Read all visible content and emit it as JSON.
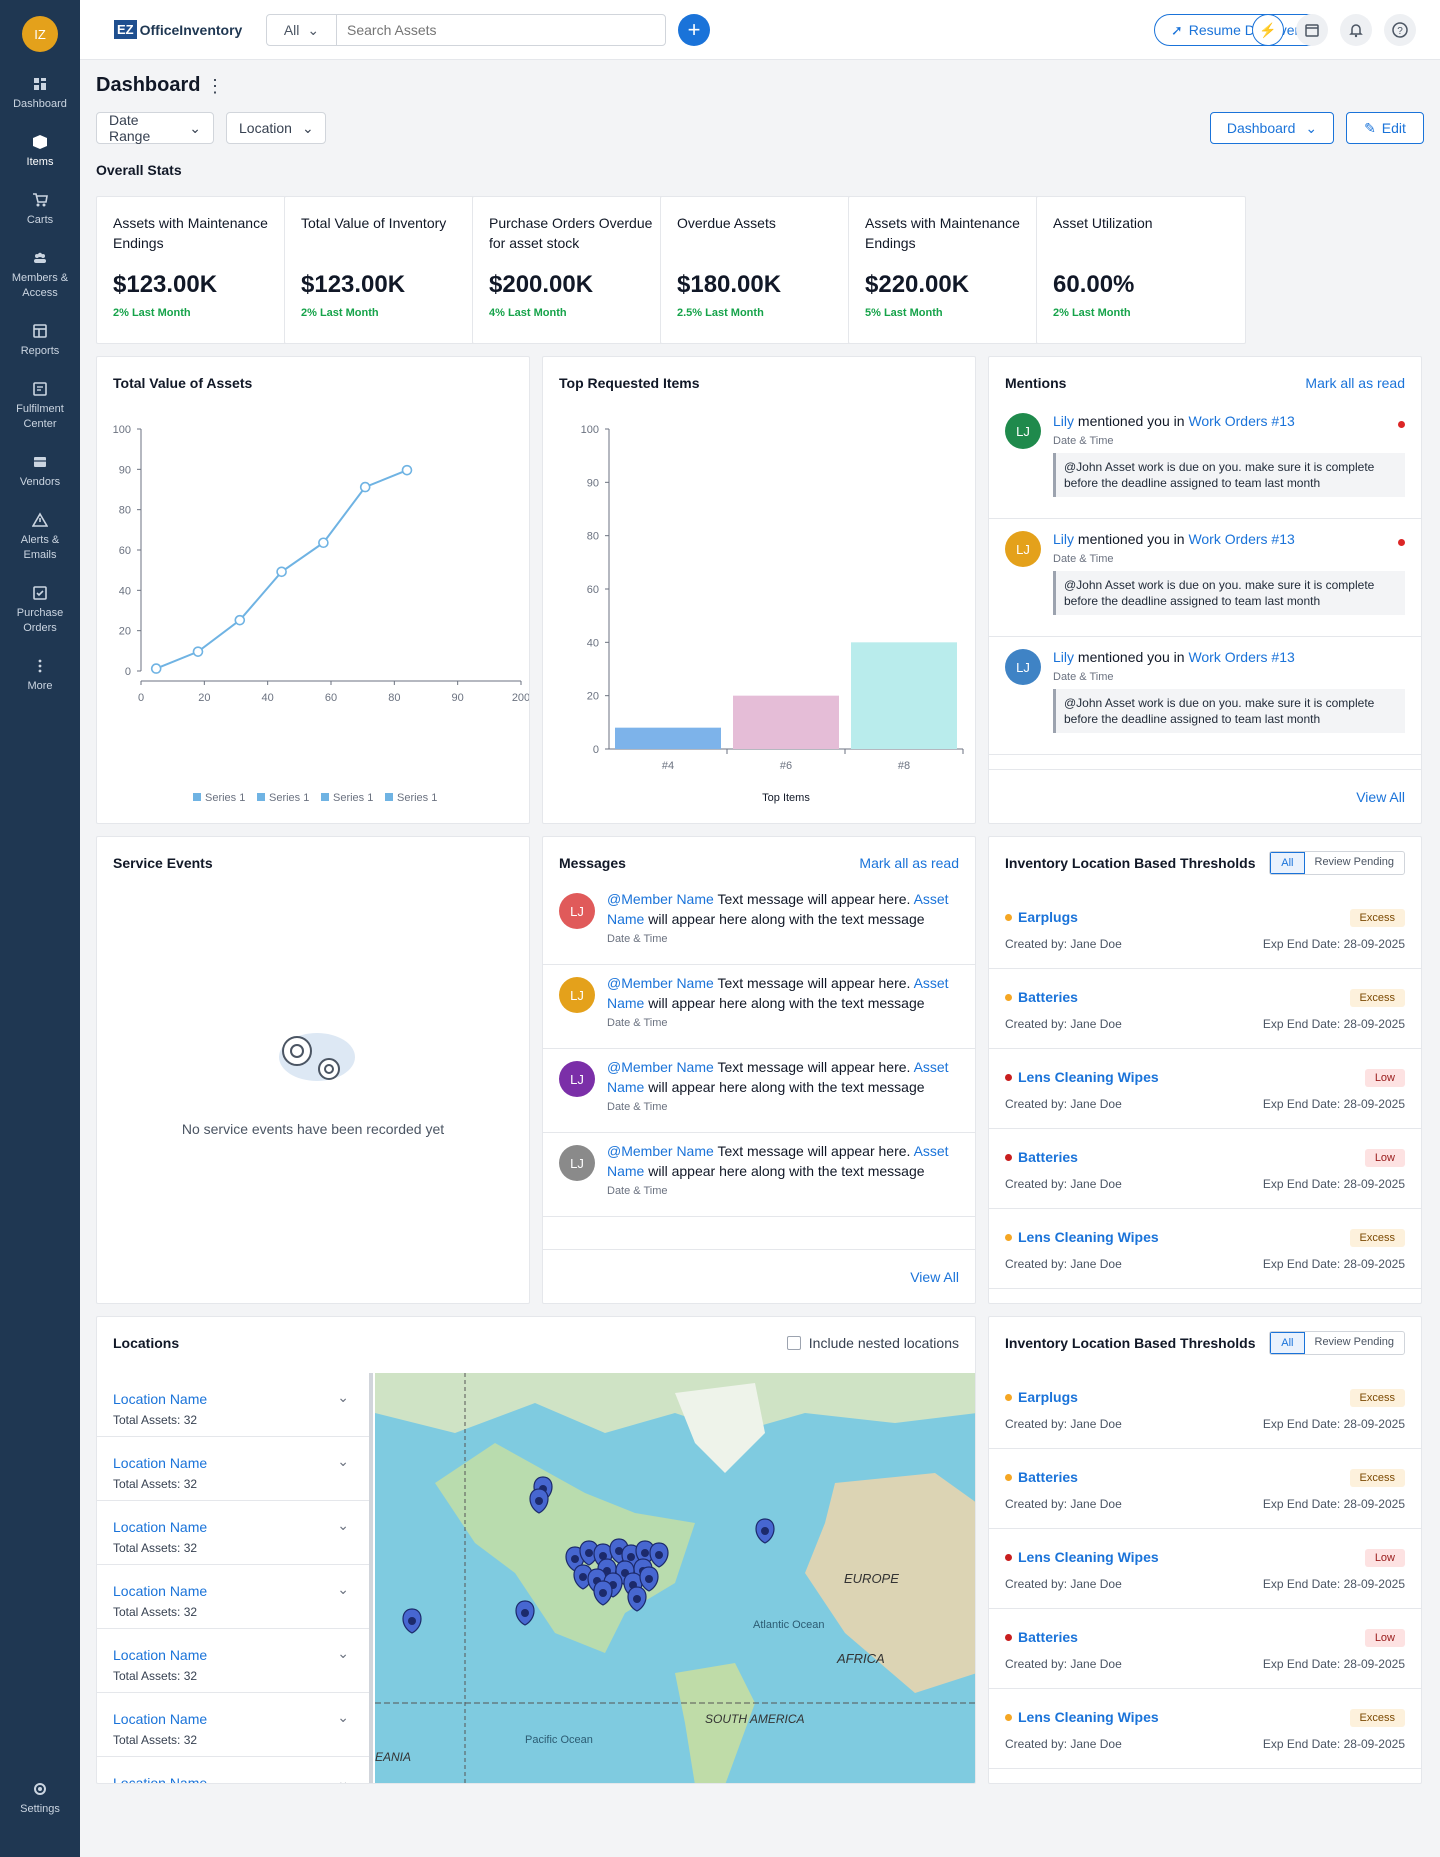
{
  "user_initials": "IZ",
  "sidebar": {
    "items": [
      {
        "label": "Dashboard",
        "icon": "dashboard-icon"
      },
      {
        "label": "Items",
        "icon": "box-icon"
      },
      {
        "label": "Carts",
        "icon": "cart-icon"
      },
      {
        "label": "Members & Access",
        "icon": "members-icon"
      },
      {
        "label": "Reports",
        "icon": "reports-icon"
      },
      {
        "label": "Fulfilment Center",
        "icon": "fulfilment-icon"
      },
      {
        "label": "Vendors",
        "icon": "vendors-icon"
      },
      {
        "label": "Alerts & Emails",
        "icon": "alert-icon"
      },
      {
        "label": "Purchase Orders",
        "icon": "purchase-icon"
      },
      {
        "label": "More",
        "icon": "more-icon"
      }
    ],
    "settings_label": "Settings"
  },
  "topbar": {
    "logo_ez": "EZ",
    "logo_name": "OfficeInventory",
    "search_category": "All",
    "search_placeholder": "Search Assets",
    "resume_label": "Resume Discovery"
  },
  "page": {
    "title": "Dashboard",
    "filter_date": "Date Range",
    "filter_location": "Location",
    "dashboard_btn": "Dashboard",
    "edit_btn": "Edit",
    "overall_stats": "Overall Stats"
  },
  "stats": [
    {
      "label": "Assets with Maintenance Endings",
      "value": "$123.00K",
      "change": "2% Last Month"
    },
    {
      "label": "Total Value of Inventory",
      "value": "$123.00K",
      "change": "2% Last Month"
    },
    {
      "label": "Purchase Orders Overdue for asset stock",
      "value": "$200.00K",
      "change": "4% Last Month"
    },
    {
      "label": "Overdue Assets",
      "value": "$180.00K",
      "change": "2.5% Last Month"
    },
    {
      "label": "Assets with Maintenance Endings",
      "value": "$220.00K",
      "change": "5% Last Month"
    },
    {
      "label": "Asset Utilization",
      "value": "60.00%",
      "change": "2% Last Month"
    }
  ],
  "chart_data": [
    {
      "type": "line",
      "title": "Total Value of Assets",
      "x": [
        8,
        30,
        52,
        74,
        96,
        118,
        140
      ],
      "series": [
        {
          "name": "Series 1",
          "values": [
            1,
            8,
            21,
            41,
            53,
            76,
            83
          ]
        }
      ],
      "xlim": [
        0,
        200
      ],
      "ylim": [
        0,
        100
      ],
      "xticks": [
        0,
        20,
        40,
        60,
        80,
        90,
        200
      ],
      "yticks": [
        0,
        20,
        40,
        60,
        80,
        90,
        100
      ],
      "legend": [
        "Series 1",
        "Series 1",
        "Series 1",
        "Series 1"
      ],
      "color": "#6fb3e3"
    },
    {
      "type": "bar",
      "title": "Top Requested Items",
      "categories": [
        "#4",
        "#6",
        "#8"
      ],
      "values": [
        8,
        20,
        40
      ],
      "xlabel": "Top Items",
      "ylim": [
        0,
        100
      ],
      "yticks": [
        0,
        20,
        40,
        60,
        80,
        90,
        100
      ],
      "colors": [
        "#7db3ea",
        "#e5bdd7",
        "#b9ecec"
      ]
    }
  ],
  "mentions": {
    "title": "Mentions",
    "mark_all": "Mark all as read",
    "view_all": "View All",
    "items": [
      {
        "initials": "LJ",
        "color": "#1f8a4c",
        "name": "Lily",
        "text": "mentioned you in",
        "link": "Work Orders #13",
        "time": "Date & Time",
        "quote": "@John Asset work is due on you. make sure it is complete before the deadline assigned to team last month",
        "unread": true
      },
      {
        "initials": "LJ",
        "color": "#e4a11b",
        "name": "Lily",
        "text": "mentioned you in",
        "link": "Work Orders #13",
        "time": "Date & Time",
        "quote": "@John Asset work is due on you. make sure it is complete before the deadline assigned to team last month",
        "unread": true
      },
      {
        "initials": "LJ",
        "color": "#3f83c5",
        "name": "Lily",
        "text": "mentioned you in",
        "link": "Work Orders #13",
        "time": "Date & Time",
        "quote": "@John Asset work is due on you. make sure it is complete before the deadline assigned to team last month",
        "unread": false
      }
    ]
  },
  "service_events": {
    "title": "Service Events",
    "empty": "No service events have been recorded yet"
  },
  "messages": {
    "title": "Messages",
    "mark_all": "Mark all as read",
    "view_all": "View All",
    "items": [
      {
        "initials": "LJ",
        "color": "#e05a5a",
        "member": "@Member Name",
        "t1": "Text message will appear here.",
        "asset": "Asset Name",
        "t2": "will appear here along with the text message",
        "time": "Date & Time"
      },
      {
        "initials": "LJ",
        "color": "#e4a11b",
        "member": "@Member Name",
        "t1": "Text message will appear here.",
        "asset": "Asset Name",
        "t2": "will appear here along with the text message",
        "time": "Date & Time"
      },
      {
        "initials": "LJ",
        "color": "#7b2fa8",
        "member": "@Member Name",
        "t1": "Text message will appear here.",
        "asset": "Asset Name",
        "t2": "will appear here along with the text message",
        "time": "Date & Time"
      },
      {
        "initials": "LJ",
        "color": "#8a8a8a",
        "member": "@Member Name",
        "t1": "Text message will appear here.",
        "asset": "Asset Name",
        "t2": "will appear here along with the text message bef…",
        "time": "Date & Time"
      }
    ]
  },
  "thresholds": {
    "title": "Inventory Location Based Thresholds",
    "seg_all": "All",
    "seg_review": "Review Pending",
    "items": [
      {
        "name": "Earplugs",
        "dot": "#f5a623",
        "badge": "Excess",
        "kind": "excess",
        "created": "Created by: Jane Doe",
        "exp": "Exp End Date: 28-09-2025"
      },
      {
        "name": "Batteries",
        "dot": "#f5a623",
        "badge": "Excess",
        "kind": "excess",
        "created": "Created by: Jane Doe",
        "exp": "Exp End Date: 28-09-2025"
      },
      {
        "name": "Lens Cleaning Wipes",
        "dot": "#c81e1e",
        "badge": "Low",
        "kind": "low",
        "created": "Created by: Jane Doe",
        "exp": "Exp End Date: 28-09-2025"
      },
      {
        "name": "Batteries",
        "dot": "#c81e1e",
        "badge": "Low",
        "kind": "low",
        "created": "Created by: Jane Doe",
        "exp": "Exp End Date: 28-09-2025"
      },
      {
        "name": "Lens Cleaning Wipes",
        "dot": "#f5a623",
        "badge": "Excess",
        "kind": "excess",
        "created": "Created by: Jane Doe",
        "exp": "Exp End Date: 28-09-2025"
      }
    ]
  },
  "locations": {
    "title": "Locations",
    "nested_label": "Include nested locations",
    "items": [
      {
        "name": "Location Name",
        "total": "Total Assets: 32"
      },
      {
        "name": "Location Name",
        "total": "Total Assets: 32"
      },
      {
        "name": "Location Name",
        "total": "Total Assets: 32"
      },
      {
        "name": "Location Name",
        "total": "Total Assets: 32"
      },
      {
        "name": "Location Name",
        "total": "Total Assets: 32"
      },
      {
        "name": "Location Name",
        "total": "Total Assets: 32"
      },
      {
        "name": "Location Name",
        "total": ""
      }
    ],
    "map_labels": [
      "EUROPE",
      "Atlantic Ocean",
      "AFRICA",
      "SOUTH AMERICA",
      "Pacific Ocean",
      "EANIA"
    ]
  }
}
